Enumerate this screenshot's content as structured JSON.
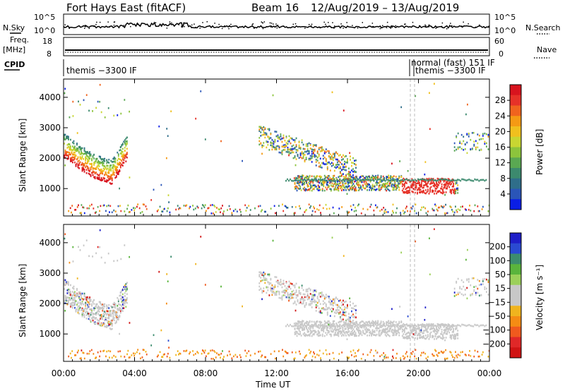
{
  "header": {
    "radar": "Fort Hays East (fitACF)",
    "beam": "Beam 16",
    "dates": "12/Aug/2019 – 13/Aug/2019"
  },
  "left_labels": {
    "nsky": "N.Sky",
    "freq_line1": "Freq.",
    "freq_line2": "[MHz]",
    "cpid": "CPID"
  },
  "right_labels": {
    "nsearch": "N.Search",
    "nave": "Nave"
  },
  "noise_panel": {
    "ticks_left": [
      "10^5",
      "10^0"
    ],
    "ticks_right": [
      "10^5",
      "10^0"
    ]
  },
  "freq_panel": {
    "ticks_left": [
      "18",
      "8"
    ],
    "ticks_right": [
      "60",
      "0"
    ]
  },
  "cpid_panel": {
    "modes": [
      {
        "text": "themis −3300 IF"
      },
      {
        "text": "normal (fast) 151 IF"
      },
      {
        "text": "themis −3300 IF"
      }
    ]
  },
  "colors": {
    "power_scale": [
      "#0a1ee6",
      "#2a55b8",
      "#2f6e8a",
      "#3c8a6e",
      "#5aa852",
      "#8cc43c",
      "#c8d632",
      "#f0c01e",
      "#f59a14",
      "#f0641e",
      "#e63228",
      "#d8141e"
    ],
    "velocity_scale": [
      "#1e1ec8",
      "#2a4ad2",
      "#3c8c6e",
      "#5ab43c",
      "#9cd05a",
      "#c8c8c8",
      "#c8c8c8",
      "#f0b41e",
      "#f58c14",
      "#f05a1e",
      "#e02828",
      "#d01414"
    ],
    "ground_scatter": "#c8c8c8"
  },
  "chart_data": [
    {
      "type": "heatmap",
      "title": "Power",
      "xlabel": "",
      "ylabel": "Slant Range [km]",
      "x_ticks": [
        "00:00",
        "04:00",
        "08:00",
        "12:00",
        "16:00",
        "20:00",
        "00:00"
      ],
      "y_ticks": [
        "1000",
        "2000",
        "3000",
        "4000"
      ],
      "ylim": [
        100,
        4600
      ],
      "colorbar_label": "Power [dB]",
      "colorbar_ticks": [
        "4",
        "8",
        "12",
        "16",
        "20",
        "24",
        "28"
      ],
      "colorbar_range": [
        0,
        30
      ]
    },
    {
      "type": "heatmap",
      "title": "Velocity",
      "xlabel": "Time UT",
      "ylabel": "Slant Range [km]",
      "x_ticks": [
        "00:00",
        "04:00",
        "08:00",
        "12:00",
        "16:00",
        "20:00",
        "00:00"
      ],
      "y_ticks": [
        "1000",
        "2000",
        "3000",
        "4000"
      ],
      "ylim": [
        100,
        4600
      ],
      "colorbar_label": "Velocity [m s⁻¹]",
      "colorbar_ticks": [
        "200",
        "100",
        "50",
        "15",
        "−15",
        "−50",
        "−100",
        "−200"
      ],
      "colorbar_range": [
        -250,
        250
      ]
    }
  ]
}
